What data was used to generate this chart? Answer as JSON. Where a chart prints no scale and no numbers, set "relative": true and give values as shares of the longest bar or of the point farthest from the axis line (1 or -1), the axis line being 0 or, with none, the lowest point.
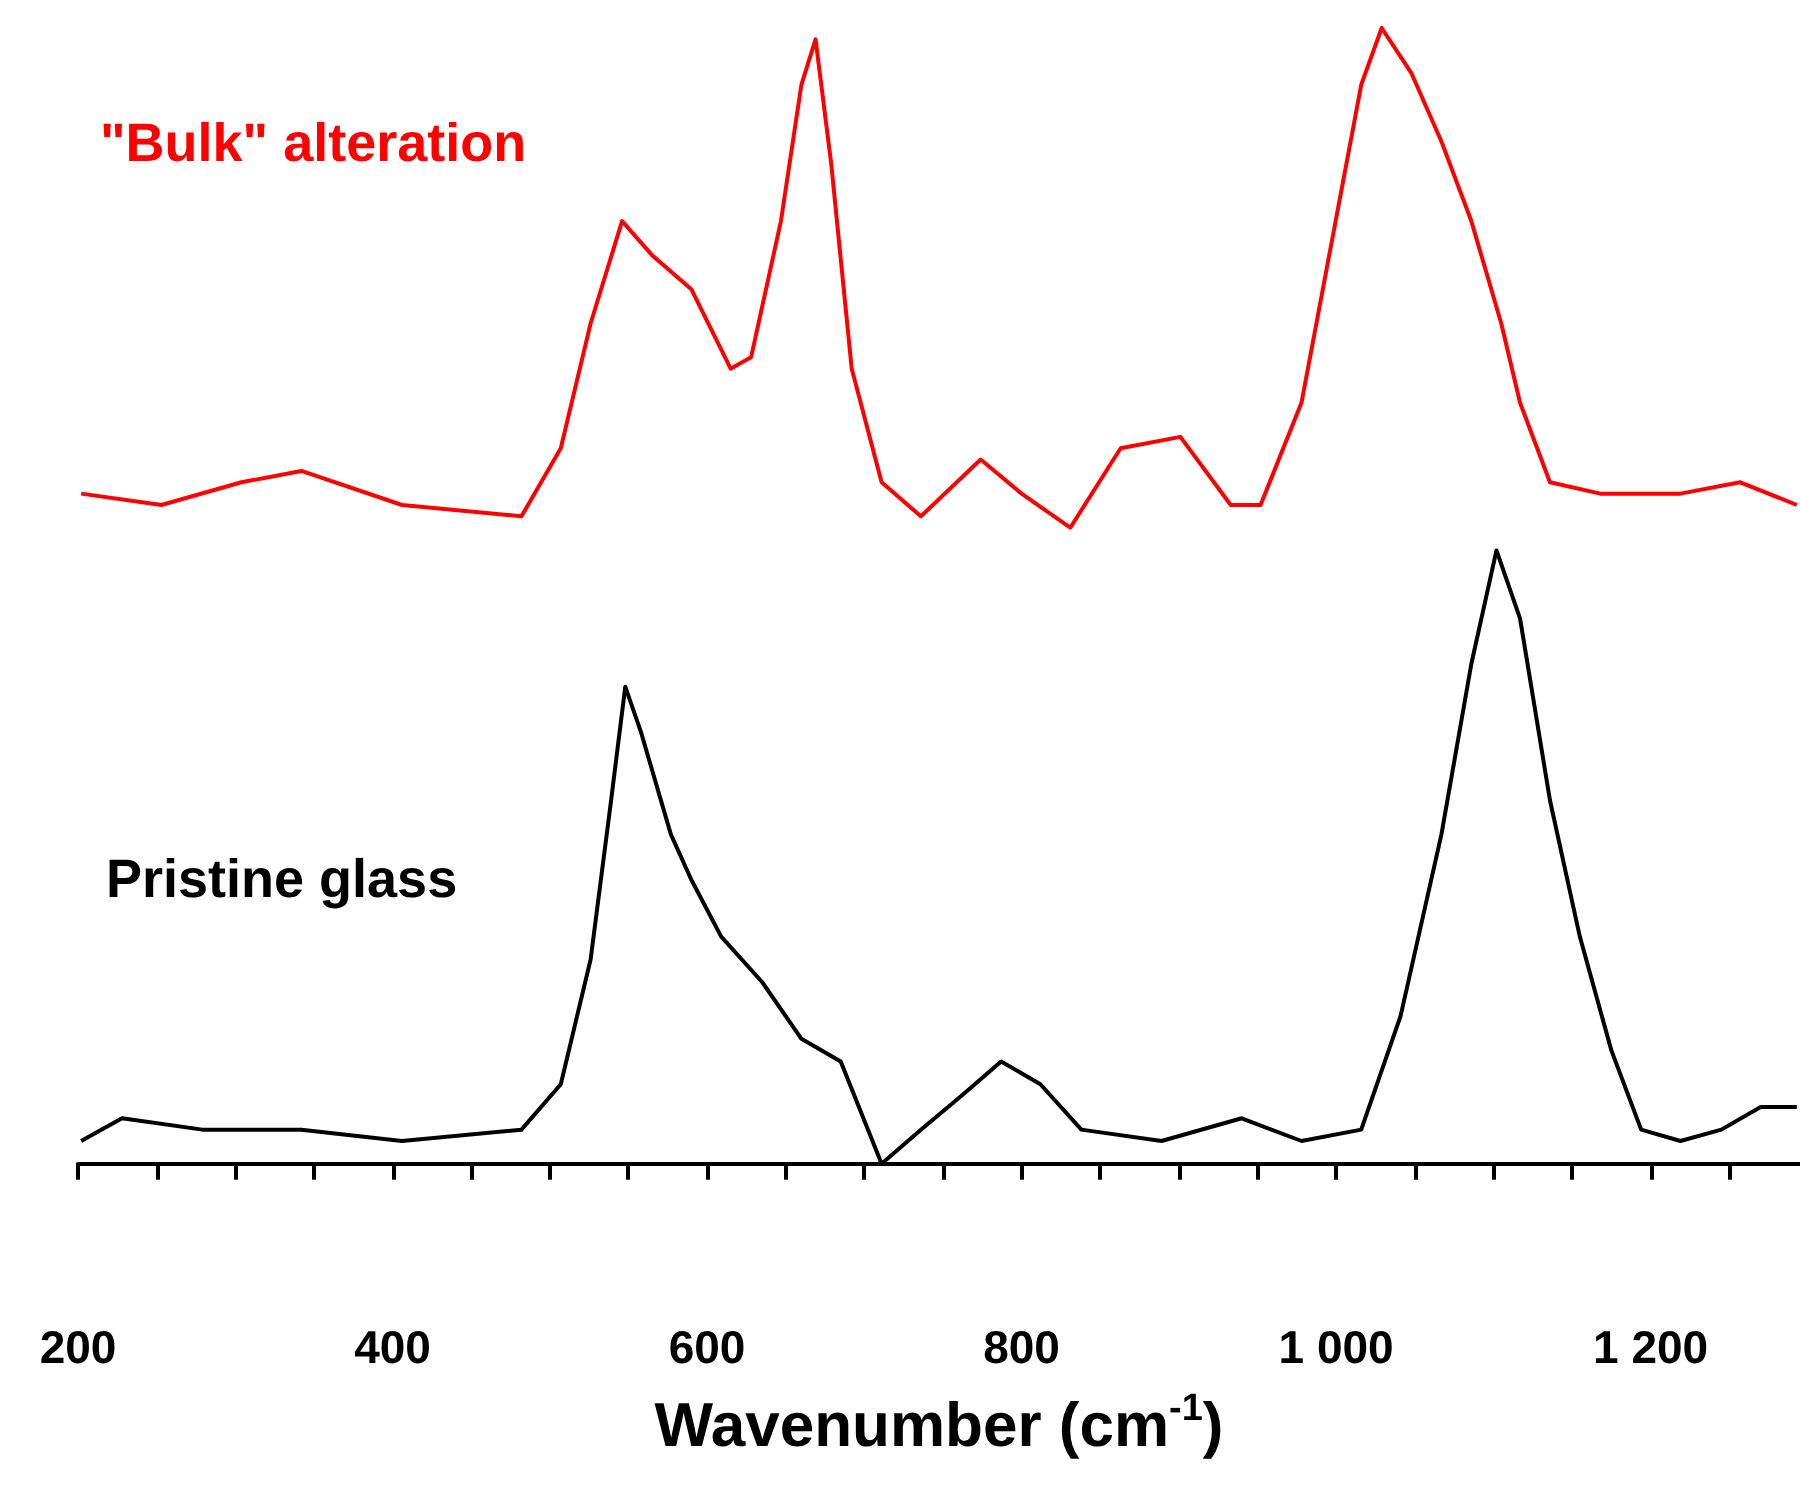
{
  "chart_data": {
    "type": "line",
    "relative": true,
    "xlabel": "Wavenumber (cm$^{-1}$)",
    "xlim": [
      200,
      1295
    ],
    "xticks": [
      200,
      {
        "value": 250,
        "label": null
      },
      {
        "value": 300,
        "label": null
      },
      {
        "value": 350,
        "label": null
      },
      400,
      {
        "value": 450,
        "label": null
      },
      {
        "value": 500,
        "label": null
      },
      {
        "value": 550,
        "label": null
      },
      600,
      {
        "value": 650,
        "label": null
      },
      {
        "value": 700,
        "label": null
      },
      {
        "value": 750,
        "label": null
      },
      800,
      {
        "value": 850,
        "label": null
      },
      {
        "value": 900,
        "label": null
      },
      {
        "value": 950,
        "label": null
      },
      {
        "value": 1000,
        "label": "1 000"
      },
      {
        "value": 1050,
        "label": null
      },
      {
        "value": 1100,
        "label": null
      },
      {
        "value": 1150,
        "label": null
      },
      {
        "value": 1200,
        "label": "1 200"
      },
      {
        "value": 1250,
        "label": null
      }
    ],
    "legend": false,
    "grid": false,
    "series": [
      {
        "name": "\"Bulk\" alteration",
        "color": "#ff0000",
        "x": [
          202,
          253,
          304,
          342,
          406,
          482,
          507,
          526,
          546,
          565,
          590,
          615,
          628,
          647,
          660,
          669,
          679,
          692,
          711,
          736,
          774,
          800,
          831,
          863,
          901,
          933,
          952,
          978,
          997,
          1016,
          1029,
          1048,
          1067,
          1086,
          1105,
          1117,
          1136,
          1168,
          1219,
          1257,
          1293
        ],
        "values": [
          0.59,
          0.58,
          0.6,
          0.61,
          0.58,
          0.57,
          0.63,
          0.74,
          0.83,
          0.8,
          0.77,
          0.7,
          0.71,
          0.83,
          0.95,
          0.99,
          0.88,
          0.7,
          0.6,
          0.57,
          0.62,
          0.59,
          0.56,
          0.63,
          0.64,
          0.58,
          0.58,
          0.67,
          0.81,
          0.95,
          1.0,
          0.96,
          0.9,
          0.83,
          0.74,
          0.67,
          0.6,
          0.59,
          0.59,
          0.6,
          0.58
        ]
      },
      {
        "name": "Pristine glass",
        "color": "#000000",
        "x": [
          202,
          228,
          279,
          342,
          406,
          482,
          507,
          526,
          539,
          548,
          558,
          577,
          590,
          609,
          635,
          660,
          685,
          711,
          736,
          762,
          787,
          812,
          838,
          889,
          940,
          978,
          1016,
          1041,
          1067,
          1086,
          1102,
          1117,
          1136,
          1155,
          1175,
          1194,
          1219,
          1245,
          1270,
          1293
        ],
        "values": [
          0.02,
          0.04,
          0.03,
          0.03,
          0.02,
          0.03,
          0.07,
          0.18,
          0.32,
          0.42,
          0.38,
          0.29,
          0.25,
          0.2,
          0.16,
          0.11,
          0.09,
          0.0,
          0.03,
          0.06,
          0.09,
          0.07,
          0.03,
          0.02,
          0.04,
          0.02,
          0.03,
          0.13,
          0.29,
          0.44,
          0.54,
          0.48,
          0.32,
          0.2,
          0.1,
          0.03,
          0.02,
          0.03,
          0.05,
          0.05
        ]
      }
    ]
  }
}
